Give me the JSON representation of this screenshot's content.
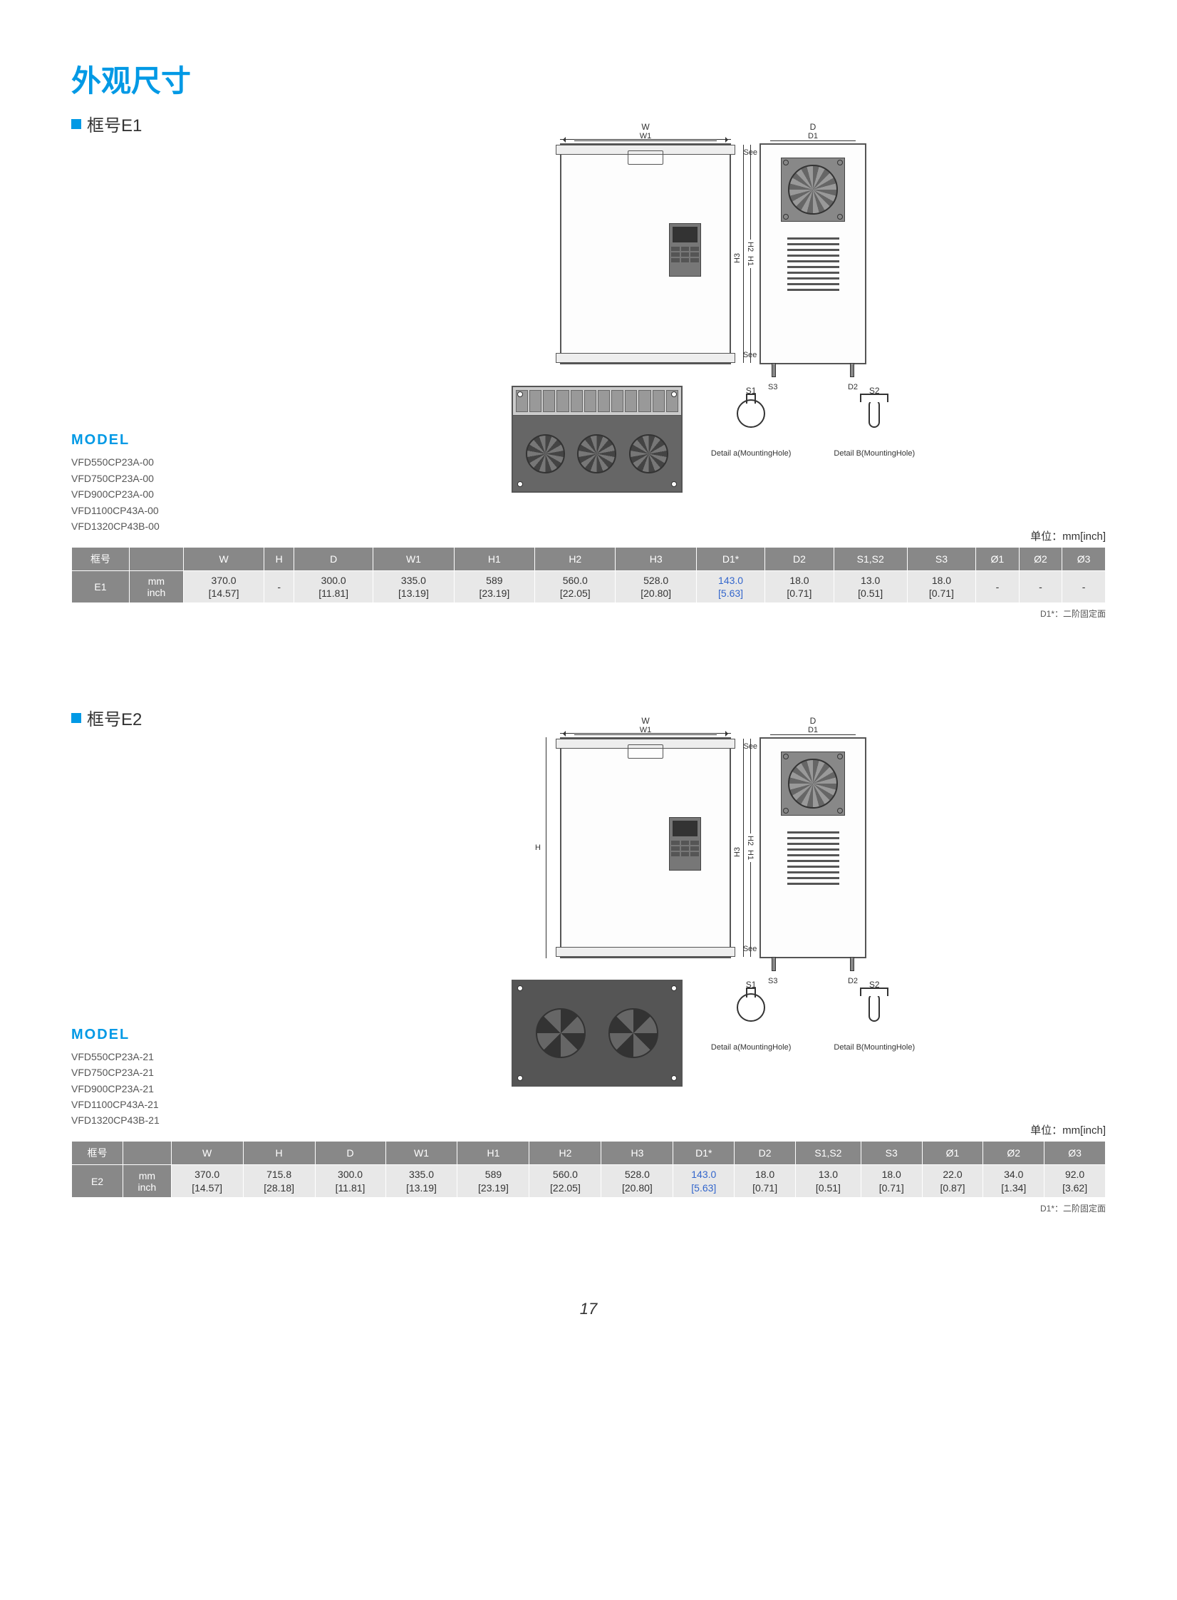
{
  "page_title": "外观尺寸",
  "page_number": "17",
  "unit_label": "单位：mm[inch]",
  "footnote": "D1*：二阶固定面",
  "diagram_labels": {
    "W": "W",
    "W1": "W1",
    "D": "D",
    "D1": "D1",
    "H": "H",
    "H1": "H1",
    "H2": "H2",
    "H3": "H3",
    "S3": "S3",
    "D2": "D2",
    "S1": "S1",
    "S2": "S2",
    "see_detail_a": "See Detail A",
    "see_detail_b": "See Detail B",
    "detail_a": "Detail a(MountingHole)",
    "detail_b": "Detail B(MountingHole)"
  },
  "model_heading": "MODEL",
  "sections": [
    {
      "frame_label": "框号E1",
      "models": [
        "VFD550CP23A-00",
        "VFD750CP23A-00",
        "VFD900CP23A-00",
        "VFD1100CP43A-00",
        "VFD1320CP43B-00"
      ],
      "frame_id": "E1",
      "show_h_dim": false,
      "table": {
        "headers": [
          "框号",
          "",
          "W",
          "H",
          "D",
          "W1",
          "H1",
          "H2",
          "H3",
          "D1*",
          "D2",
          "S1,S2",
          "S3",
          "Ø1",
          "Ø2",
          "Ø3"
        ],
        "mm": [
          "370.0",
          "-",
          "300.0",
          "335.0",
          "589",
          "560.0",
          "528.0",
          "143.0",
          "18.0",
          "13.0",
          "18.0",
          "-",
          "-",
          "-"
        ],
        "inch": [
          "[14.57]",
          "",
          "[11.81]",
          "[13.19]",
          "[23.19]",
          "[22.05]",
          "[20.80]",
          "[5.63]",
          "[0.71]",
          "[0.51]",
          "[0.71]",
          "",
          "",
          ""
        ],
        "highlight_col": 7
      }
    },
    {
      "frame_label": "框号E2",
      "models": [
        "VFD550CP23A-21",
        "VFD750CP23A-21",
        "VFD900CP23A-21",
        "VFD1100CP43A-21",
        "VFD1320CP43B-21"
      ],
      "frame_id": "E2",
      "show_h_dim": true,
      "table": {
        "headers": [
          "框号",
          "",
          "W",
          "H",
          "D",
          "W1",
          "H1",
          "H2",
          "H3",
          "D1*",
          "D2",
          "S1,S2",
          "S3",
          "Ø1",
          "Ø2",
          "Ø3"
        ],
        "mm": [
          "370.0",
          "715.8",
          "300.0",
          "335.0",
          "589",
          "560.0",
          "528.0",
          "143.0",
          "18.0",
          "13.0",
          "18.0",
          "22.0",
          "34.0",
          "92.0"
        ],
        "inch": [
          "[14.57]",
          "[28.18]",
          "[11.81]",
          "[13.19]",
          "[23.19]",
          "[22.05]",
          "[20.80]",
          "[5.63]",
          "[0.71]",
          "[0.51]",
          "[0.71]",
          "[0.87]",
          "[1.34]",
          "[3.62]"
        ],
        "highlight_col": 7
      }
    }
  ],
  "colors": {
    "accent": "#0099e5",
    "table_header": "#888888",
    "table_cell": "#e8e8e8",
    "highlight_text": "#3366cc"
  }
}
